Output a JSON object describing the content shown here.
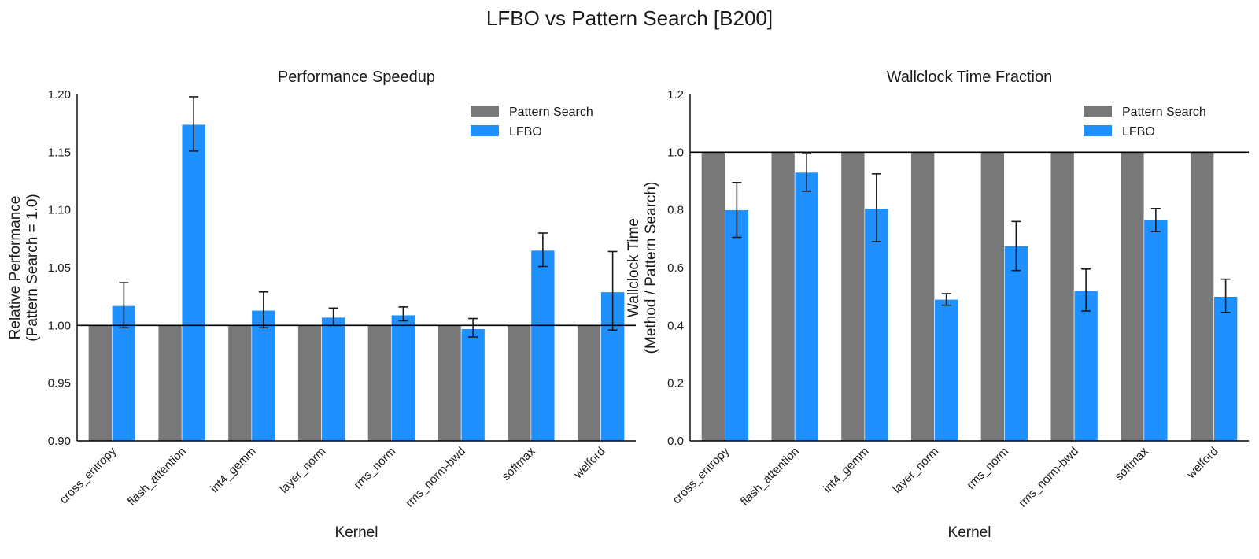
{
  "suptitle": "LFBO vs Pattern Search [B200]",
  "colors": {
    "pattern_search": "#787878",
    "lfbo": "#1e90ff",
    "axis": "#000000",
    "errorbar": "#1a1a1a"
  },
  "chart_data": [
    {
      "type": "bar",
      "title": "Performance Speedup",
      "xlabel": "Kernel",
      "ylabel_lines": [
        "Relative Performance",
        "(Pattern Search = 1.0)"
      ],
      "ylim": [
        0.9,
        1.2
      ],
      "yticks": [
        0.9,
        0.95,
        1.0,
        1.05,
        1.1,
        1.15,
        1.2
      ],
      "ytick_decimals": 2,
      "reference_line": 1.0,
      "legend_position": "top-right",
      "categories": [
        "cross_entropy",
        "flash_attention",
        "int4_gemm",
        "layer_norm",
        "rms_norm",
        "rms_norm-bwd",
        "softmax",
        "welford"
      ],
      "series": [
        {
          "name": "Pattern Search",
          "values": [
            1.0,
            1.0,
            1.0,
            1.0,
            1.0,
            1.0,
            1.0,
            1.0
          ]
        },
        {
          "name": "LFBO",
          "values": [
            1.017,
            1.174,
            1.013,
            1.007,
            1.009,
            0.997,
            1.065,
            1.029
          ],
          "err_low": [
            0.998,
            1.151,
            0.998,
            1.0,
            1.004,
            0.99,
            1.051,
            0.996
          ],
          "err_high": [
            1.037,
            1.198,
            1.029,
            1.015,
            1.016,
            1.006,
            1.08,
            1.064
          ]
        }
      ]
    },
    {
      "type": "bar",
      "title": "Wallclock Time Fraction",
      "xlabel": "Kernel",
      "ylabel_lines": [
        "Wallclock Time",
        "(Method / Pattern Search)"
      ],
      "ylim": [
        0.0,
        1.2
      ],
      "yticks": [
        0.0,
        0.2,
        0.4,
        0.6,
        0.8,
        1.0,
        1.2
      ],
      "ytick_decimals": 1,
      "reference_line": 1.0,
      "legend_position": "top-right",
      "categories": [
        "cross_entropy",
        "flash_attention",
        "int4_gemm",
        "layer_norm",
        "rms_norm",
        "rms_norm-bwd",
        "softmax",
        "welford"
      ],
      "series": [
        {
          "name": "Pattern Search",
          "values": [
            1.0,
            1.0,
            1.0,
            1.0,
            1.0,
            1.0,
            1.0,
            1.0
          ]
        },
        {
          "name": "LFBO",
          "values": [
            0.8,
            0.93,
            0.805,
            0.49,
            0.675,
            0.52,
            0.765,
            0.5
          ],
          "err_low": [
            0.705,
            0.865,
            0.69,
            0.47,
            0.59,
            0.45,
            0.725,
            0.445
          ],
          "err_high": [
            0.895,
            0.995,
            0.925,
            0.51,
            0.76,
            0.595,
            0.805,
            0.56
          ]
        }
      ]
    }
  ]
}
